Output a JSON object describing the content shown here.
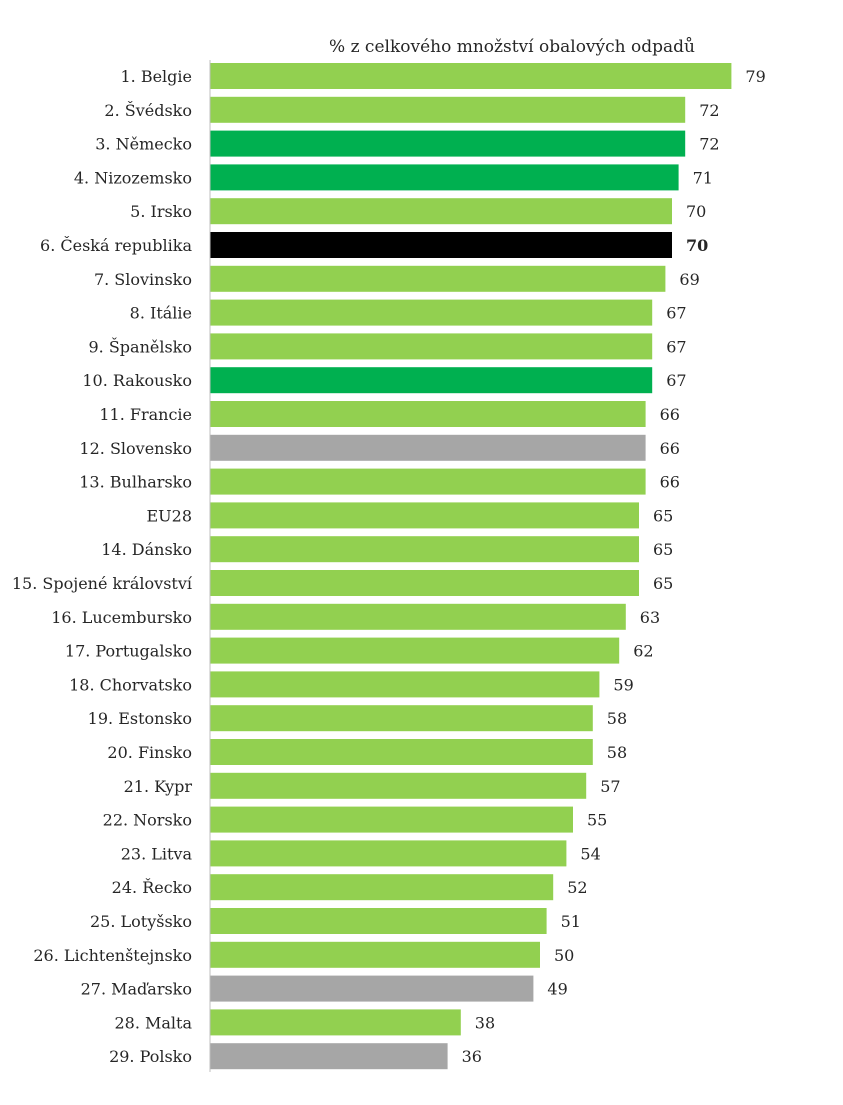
{
  "chart_data": {
    "type": "bar",
    "orientation": "horizontal",
    "title": "% z celkového množství obalových odpadů",
    "xlabel": "",
    "ylabel": "",
    "xlim": [
      0,
      80
    ],
    "grid": false,
    "legend": "none",
    "categories": [
      "1. Belgie",
      "2. Švédsko",
      "3. Německo",
      "4. Nizozemsko",
      "5. Irsko",
      "6. Česká republika",
      "7. Slovinsko",
      "8. Itálie",
      "9. Španělsko",
      "10. Rakousko",
      "11. Francie",
      "12. Slovensko",
      "13. Bulharsko",
      "EU28",
      "14. Dánsko",
      "15. Spojené království",
      "16. Lucembursko",
      "17. Portugalsko",
      "18. Chorvatsko",
      "19. Estonsko",
      "20. Finsko",
      "21. Kypr",
      "22. Norsko",
      "23. Litva",
      "24. Řecko",
      "25. Lotyšsko",
      "26. Lichtenštejnsko",
      "27. Maďarsko",
      "28. Malta",
      "29. Polsko"
    ],
    "values": [
      79,
      72,
      72,
      71,
      70,
      70,
      69,
      67,
      67,
      67,
      66,
      66,
      66,
      65,
      65,
      65,
      63,
      62,
      59,
      58,
      58,
      57,
      55,
      54,
      52,
      51,
      50,
      49,
      38,
      36
    ],
    "bar_styles": [
      "light",
      "light",
      "dark",
      "dark",
      "light",
      "black",
      "light",
      "light",
      "light",
      "dark",
      "light",
      "grey",
      "light",
      "light",
      "light",
      "light",
      "light",
      "light",
      "light",
      "light",
      "light",
      "light",
      "light",
      "light",
      "light",
      "light",
      "light",
      "grey",
      "light",
      "grey"
    ],
    "bold_labels": [
      5
    ],
    "colors": {
      "light": "#92d050",
      "dark": "#00b050",
      "black": "#000000",
      "grey": "#a6a6a6",
      "axis": "#bfbfbf",
      "text": "#262626"
    }
  }
}
